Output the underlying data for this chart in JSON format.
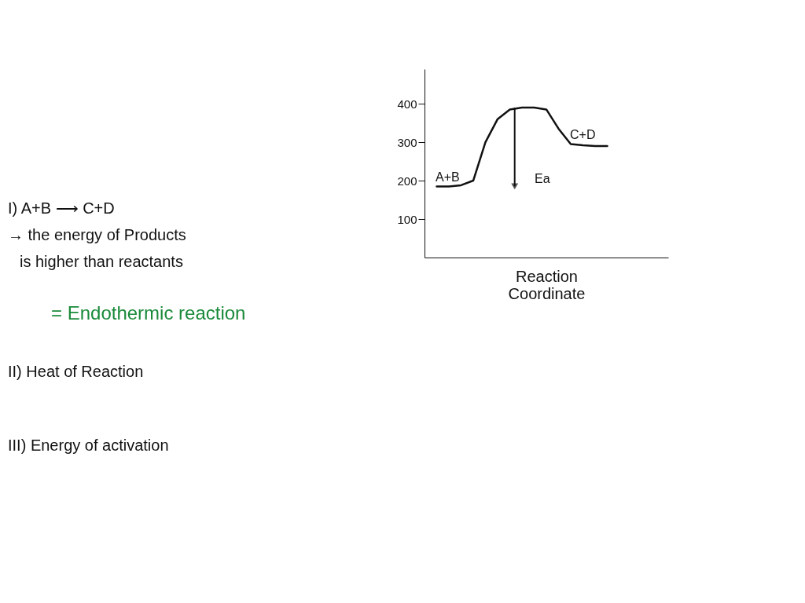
{
  "chart_data": {
    "type": "line",
    "categories": [
      null,
      null,
      null,
      null,
      null,
      null,
      null,
      null,
      null,
      null,
      null,
      null,
      null,
      null,
      null,
      null,
      null,
      null,
      null,
      null,
      null
    ],
    "series": [
      {
        "color": "#111111",
        "values": [
          null,
          185,
          185,
          188,
          200,
          300,
          360,
          385,
          390,
          390,
          385,
          335,
          295,
          292,
          290,
          290,
          null,
          null,
          null,
          null,
          null
        ]
      }
    ],
    "ylim": [
      0,
      490
    ],
    "yticks": [
      100,
      200,
      300,
      400
    ],
    "xlabel": "Reaction Coordinate",
    "tick_labels": "y",
    "grid": false,
    "marker": "none",
    "line_style": "solid",
    "annotations": [
      "A+B",
      "C+D",
      "Ea",
      "I) A+B ⟶ C+D",
      "→ the energy of Products",
      "is higher than reactants",
      "= Endothermic reaction",
      "II) Heat of Reaction",
      "III) Energy of activation"
    ]
  }
}
